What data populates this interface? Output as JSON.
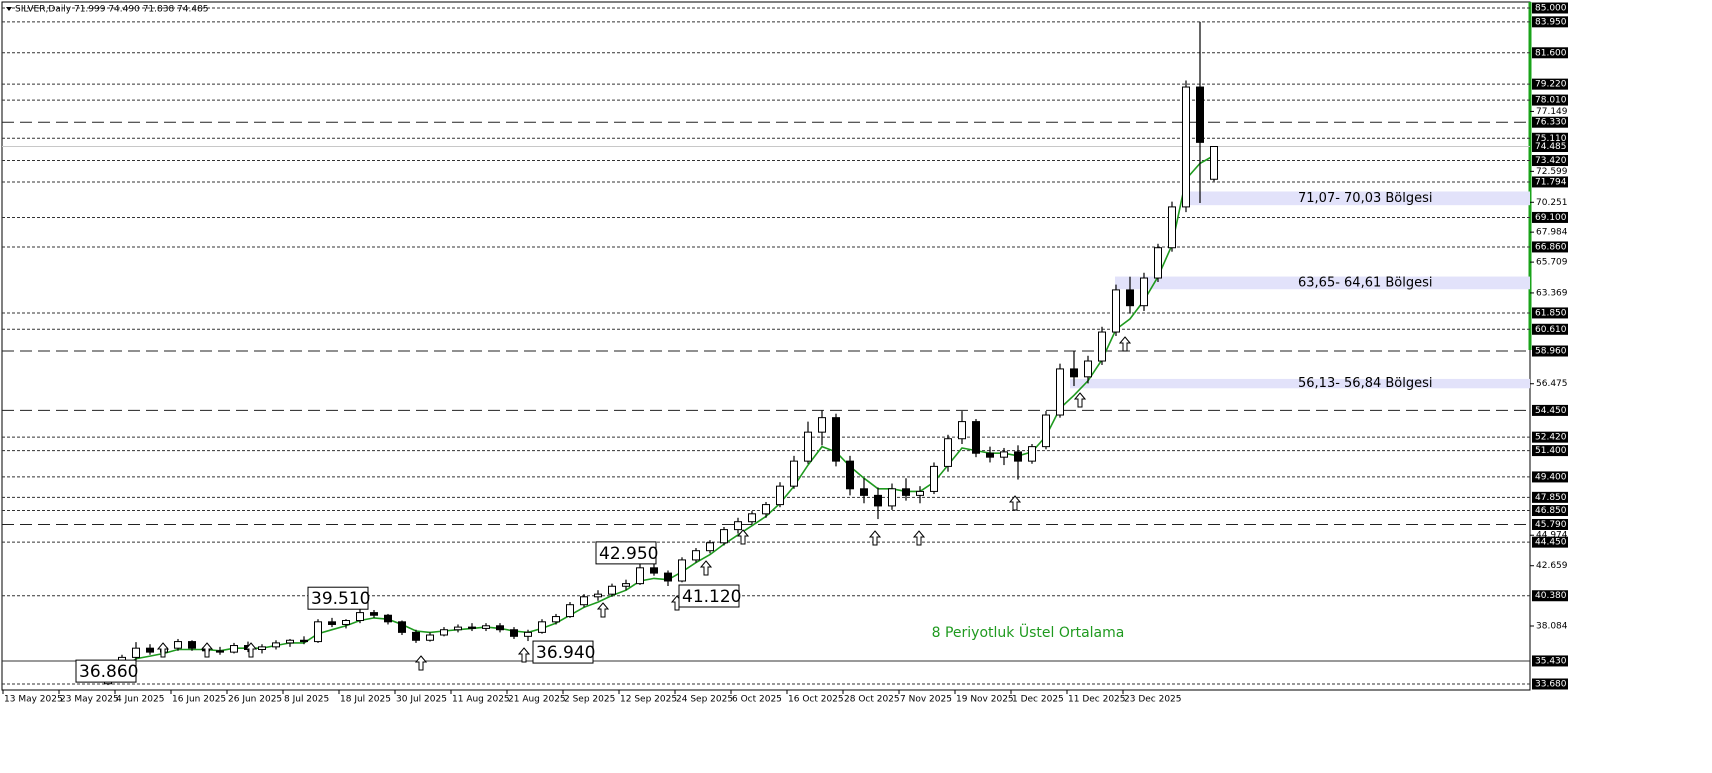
{
  "chart_data": {
    "type": "candlestick",
    "title": "SILVER,Daily  71.999 74.490 71.838 74.485",
    "xlim": [
      0,
      218
    ],
    "xticks": [
      {
        "value": 0,
        "label": "13 May 2025"
      },
      {
        "value": 8,
        "label": "23 May 2025"
      },
      {
        "value": 16,
        "label": "4 Jun 2025"
      },
      {
        "value": 24,
        "label": "16 Jun 2025"
      },
      {
        "value": 32,
        "label": "26 Jun 2025"
      },
      {
        "value": 40,
        "label": "8 Jul 2025"
      },
      {
        "value": 48,
        "label": "18 Jul 2025"
      },
      {
        "value": 56,
        "label": "30 Jul 2025"
      },
      {
        "value": 64,
        "label": "11 Aug 2025"
      },
      {
        "value": 72,
        "label": "21 Aug 2025"
      },
      {
        "value": 80,
        "label": "2 Sep 2025"
      },
      {
        "value": 88,
        "label": "12 Sep 2025"
      },
      {
        "value": 96,
        "label": "24 Sep 2025"
      },
      {
        "value": 104,
        "label": "6 Oct 2025"
      },
      {
        "value": 112,
        "label": "16 Oct 2025"
      },
      {
        "value": 120,
        "label": "28 Oct 2025"
      },
      {
        "value": 128,
        "label": "7 Nov 2025"
      },
      {
        "value": 136,
        "label": "19 Nov 2025"
      },
      {
        "value": 144,
        "label": "1 Dec 2025"
      },
      {
        "value": 152,
        "label": "11 Dec 2025"
      },
      {
        "value": 160,
        "label": "23 Dec 2025"
      }
    ],
    "ylim": [
      33.68,
      85
    ],
    "yticks": [
      {
        "value": 77.149,
        "label": "77.149"
      },
      {
        "value": 72.599,
        "label": "72.599"
      },
      {
        "value": 70.251,
        "label": "70.251"
      },
      {
        "value": 67.984,
        "label": "67.984"
      },
      {
        "value": 65.709,
        "label": "65.709"
      },
      {
        "value": 63.369,
        "label": "63.369"
      },
      {
        "value": 56.475,
        "label": "56.475"
      },
      {
        "value": 44.974,
        "label": "44.974"
      },
      {
        "value": 42.659,
        "label": "42.659"
      },
      {
        "value": 38.084,
        "label": "38.084"
      }
    ],
    "levels": [
      {
        "value": 85,
        "label": "85.000",
        "line": "dot"
      },
      {
        "value": 83.95,
        "label": "83.950",
        "line": "dot"
      },
      {
        "value": 81.6,
        "label": "81.600",
        "line": "dot"
      },
      {
        "value": 79.22,
        "label": "79.220",
        "line": "dot"
      },
      {
        "value": 78.01,
        "label": "78.010",
        "line": "dot"
      },
      {
        "value": 76.33,
        "label": "76.330",
        "line": "dash"
      },
      {
        "value": 75.11,
        "label": "75.110",
        "line": "dot"
      },
      {
        "value": 74.485,
        "label": "74.485",
        "line": "price"
      },
      {
        "value": 73.42,
        "label": "73.420",
        "line": "dot"
      },
      {
        "value": 71.794,
        "label": "71.794",
        "line": "dot"
      },
      {
        "value": 69.1,
        "label": "69.100",
        "line": "dot"
      },
      {
        "value": 66.86,
        "label": "66.860",
        "line": "dot"
      },
      {
        "value": 61.85,
        "label": "61.850",
        "line": "dot"
      },
      {
        "value": 60.61,
        "label": "60.610",
        "line": "dot"
      },
      {
        "value": 58.96,
        "label": "58.960",
        "line": "dash"
      },
      {
        "value": 54.45,
        "label": "54.450",
        "line": "dash"
      },
      {
        "value": 52.42,
        "label": "52.420",
        "line": "dot"
      },
      {
        "value": 51.4,
        "label": "51.400",
        "line": "dot"
      },
      {
        "value": 49.4,
        "label": "49.400",
        "line": "dot"
      },
      {
        "value": 47.85,
        "label": "47.850",
        "line": "dot"
      },
      {
        "value": 46.85,
        "label": "46.850",
        "line": "dot"
      },
      {
        "value": 45.79,
        "label": "45.790",
        "line": "dash"
      },
      {
        "value": 44.45,
        "label": "44.450",
        "line": "dot"
      },
      {
        "value": 40.38,
        "label": "40.380",
        "line": "dot"
      },
      {
        "value": 35.43,
        "label": "35.430",
        "line": "solid"
      },
      {
        "value": 33.68,
        "label": "33.680",
        "line": "dot"
      }
    ],
    "x": [
      15,
      17,
      19,
      21,
      23,
      25,
      27,
      29,
      31,
      33,
      35,
      37,
      39,
      41,
      43,
      45,
      47,
      49,
      51,
      53,
      55,
      57,
      59,
      61,
      63,
      65,
      67,
      69,
      71,
      73,
      75,
      77,
      79,
      81,
      83,
      85,
      87,
      89,
      91,
      93,
      95,
      97,
      99,
      101,
      103,
      105,
      107,
      109,
      111,
      113,
      115,
      117,
      119,
      121,
      123,
      125,
      127,
      129,
      131,
      133,
      135,
      137,
      139,
      141,
      143,
      145,
      147,
      149,
      151,
      153,
      155,
      157,
      159,
      161,
      163,
      165,
      167,
      169,
      171,
      173
    ],
    "open": [
      33.7,
      34.1,
      35.7,
      36.4,
      36.1,
      36.4,
      36.9,
      36.4,
      36.2,
      36.1,
      36.6,
      36.3,
      36.5,
      36.8,
      37.0,
      36.9,
      38.4,
      38.2,
      38.5,
      39.1,
      38.9,
      38.4,
      37.6,
      37.0,
      37.4,
      37.8,
      38.0,
      37.9,
      38.1,
      37.8,
      37.3,
      37.6,
      38.4,
      38.8,
      39.7,
      40.3,
      40.5,
      41.1,
      41.3,
      42.5,
      42.1,
      41.5,
      43.1,
      43.8,
      44.4,
      45.4,
      46.0,
      46.6,
      47.3,
      48.7,
      50.6,
      52.8,
      53.9,
      50.6,
      48.5,
      48.0,
      47.2,
      48.5,
      48.0,
      48.3,
      50.2,
      52.3,
      53.6,
      51.2,
      50.9,
      51.3,
      50.6,
      51.7,
      54.1,
      57.6,
      57.0,
      58.2,
      60.4,
      63.6,
      62.4,
      64.5,
      66.8,
      69.9,
      79.0,
      71.999
    ],
    "high": [
      34.3,
      35.9,
      36.86,
      36.7,
      36.6,
      37.1,
      37.0,
      36.6,
      36.5,
      36.8,
      36.9,
      36.7,
      37.0,
      37.1,
      37.3,
      38.6,
      38.7,
      38.6,
      39.51,
      39.3,
      39.0,
      38.5,
      37.8,
      37.6,
      38.0,
      38.2,
      38.3,
      38.3,
      38.3,
      38.0,
      37.8,
      38.6,
      39.0,
      39.9,
      40.5,
      40.8,
      41.3,
      41.6,
      42.95,
      42.8,
      42.3,
      43.3,
      44.0,
      44.6,
      45.6,
      46.3,
      46.8,
      47.5,
      49.0,
      51.0,
      53.6,
      54.45,
      54.2,
      51.0,
      49.3,
      48.6,
      48.9,
      49.3,
      48.7,
      50.5,
      52.6,
      54.4,
      53.8,
      51.7,
      51.6,
      51.8,
      51.9,
      54.4,
      58.0,
      58.96,
      58.6,
      60.8,
      64.0,
      64.6,
      64.9,
      67.1,
      70.3,
      79.5,
      83.95,
      74.49
    ],
    "low": [
      33.6,
      34.0,
      35.5,
      35.9,
      35.8,
      36.2,
      36.2,
      35.9,
      35.9,
      36.0,
      36.1,
      36.0,
      36.3,
      36.5,
      36.7,
      36.8,
      38.0,
      37.9,
      38.3,
      38.7,
      38.2,
      37.4,
      36.8,
      36.9,
      37.3,
      37.6,
      37.7,
      37.7,
      37.6,
      37.1,
      36.94,
      37.5,
      38.2,
      38.7,
      39.5,
      40.0,
      40.3,
      40.8,
      41.2,
      41.9,
      41.12,
      41.4,
      42.9,
      43.6,
      44.2,
      45.1,
      45.8,
      46.3,
      47.1,
      48.5,
      50.4,
      51.8,
      50.2,
      48.0,
      47.4,
      46.2,
      46.9,
      47.6,
      47.4,
      48.1,
      49.8,
      51.9,
      50.9,
      50.5,
      50.3,
      49.2,
      50.4,
      51.5,
      53.9,
      56.3,
      56.5,
      57.9,
      60.1,
      61.8,
      62.0,
      64.2,
      66.5,
      69.5,
      70.2,
      71.838
    ],
    "close": [
      34.1,
      35.7,
      36.4,
      36.1,
      36.4,
      36.9,
      36.4,
      36.2,
      36.1,
      36.6,
      36.3,
      36.5,
      36.8,
      37.0,
      36.9,
      38.4,
      38.2,
      38.5,
      39.1,
      38.9,
      38.4,
      37.6,
      37.0,
      37.4,
      37.8,
      38.0,
      37.9,
      38.1,
      37.8,
      37.3,
      37.6,
      38.4,
      38.8,
      39.7,
      40.3,
      40.5,
      41.1,
      41.3,
      42.5,
      42.1,
      41.5,
      43.1,
      43.8,
      44.4,
      45.4,
      46.0,
      46.6,
      47.3,
      48.7,
      50.6,
      52.8,
      53.9,
      50.6,
      48.5,
      48.0,
      47.2,
      48.5,
      48.0,
      48.3,
      50.2,
      52.3,
      53.6,
      51.2,
      50.9,
      51.3,
      50.6,
      51.7,
      54.1,
      57.6,
      57.0,
      58.2,
      60.4,
      63.6,
      62.4,
      64.5,
      66.8,
      69.9,
      79.0,
      74.8,
      74.485
    ],
    "ema": {
      "name": "8 Periyotluk Üstel Ortalama",
      "color": "#1f9a1f",
      "values": [
        34.0,
        34.8,
        35.6,
        35.8,
        36.0,
        36.3,
        36.3,
        36.3,
        36.2,
        36.4,
        36.4,
        36.4,
        36.6,
        36.8,
        36.8,
        37.5,
        37.8,
        38.1,
        38.5,
        38.7,
        38.6,
        38.2,
        37.7,
        37.6,
        37.7,
        37.8,
        37.9,
        38.0,
        37.9,
        37.7,
        37.6,
        37.9,
        38.3,
        38.9,
        39.5,
        39.9,
        40.4,
        40.8,
        41.5,
        41.7,
        41.6,
        42.2,
        42.9,
        43.5,
        44.3,
        45.0,
        45.7,
        46.4,
        47.4,
        48.7,
        50.3,
        51.7,
        51.3,
        50.2,
        49.3,
        48.5,
        48.5,
        48.3,
        48.3,
        49.0,
        50.3,
        51.6,
        51.4,
        51.2,
        51.2,
        51.0,
        51.3,
        52.5,
        54.6,
        55.6,
        56.7,
        58.3,
        60.6,
        61.4,
        62.8,
        64.6,
        67.0,
        72.0,
        73.2,
        73.8
      ]
    },
    "zones": [
      {
        "label": "71,07- 70,03 Bölgesi",
        "range": [
          70.03,
          71.07
        ]
      },
      {
        "label": "63,65- 64,61 Bölgesi",
        "range": [
          63.65,
          64.61
        ]
      },
      {
        "label": "56,13- 56,84 Bölgesi",
        "range": [
          56.13,
          56.84
        ]
      }
    ],
    "annotations": [
      {
        "value": 36.86,
        "label": "36.860"
      },
      {
        "value": 39.51,
        "label": "39.510"
      },
      {
        "value": 42.95,
        "label": "42.950"
      },
      {
        "value": 41.12,
        "label": "41.120"
      },
      {
        "value": 36.94,
        "label": "36.940"
      }
    ]
  }
}
